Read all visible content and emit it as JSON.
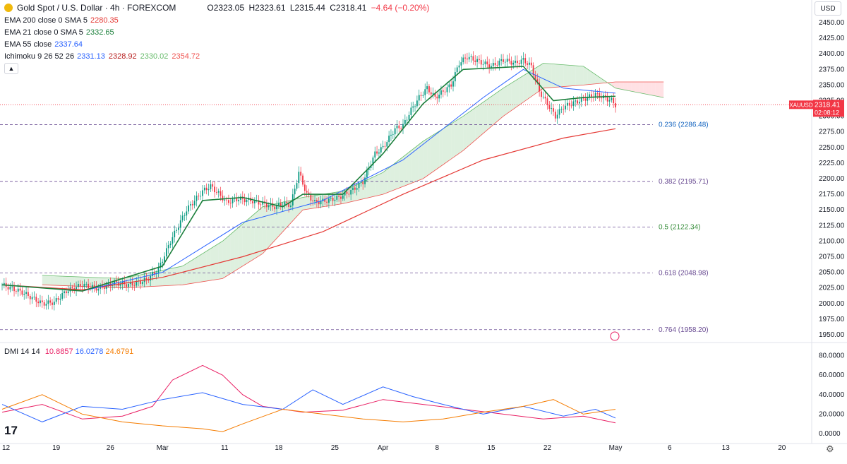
{
  "header": {
    "symbol_title": "Gold Spot / U.S. Dollar · 4h · FOREXCOM",
    "open": "O2323.05",
    "high": "H2323.61",
    "low": "L2315.44",
    "close": "C2318.41",
    "change": "−4.64 (−0.20%)"
  },
  "indicators": [
    {
      "label": "EMA 200 close 0 SMA 5",
      "values": [
        "2280.35"
      ],
      "colors": [
        "#e53935"
      ]
    },
    {
      "label": "EMA 21 close 0 SMA 5",
      "values": [
        "2332.65"
      ],
      "colors": [
        "#1b7f3b"
      ]
    },
    {
      "label": "EMA 55 close",
      "values": [
        "2337.64"
      ],
      "colors": [
        "#2962ff"
      ]
    },
    {
      "label": "Ichimoku 9 26 52 26",
      "values": [
        "2331.13",
        "2328.92",
        "2330.02",
        "2354.72"
      ],
      "colors": [
        "#2962ff",
        "#b71c1c",
        "#66bb6a",
        "#ef5350"
      ]
    }
  ],
  "currency_button": "USD",
  "dmi_legend": {
    "label": "DMI 14 14",
    "values": [
      "10.8857",
      "16.0278",
      "24.6791"
    ],
    "colors": [
      "#e91e63",
      "#2962ff",
      "#f57c00"
    ]
  },
  "price_tag": {
    "symbol": "XAUUSD",
    "price": "2318.41",
    "countdown": "02:08:12",
    "color": "#f23645"
  },
  "colors": {
    "up": "#089981",
    "down": "#f23645",
    "ema200": "#e53935",
    "ema21": "#1b7f3b",
    "ema55": "#2962ff",
    "kumo_up": "#c8e6c9",
    "kumo_down": "#ffcdd2",
    "fib": "#6a4c93"
  },
  "chart_data": [
    {
      "type": "candlestick",
      "title": "Gold Spot / U.S. Dollar · 4h · FOREXCOM",
      "ylim": [
        1940,
        2470
      ],
      "y_ticks": [
        "2450.00",
        "2425.00",
        "2400.00",
        "2375.00",
        "2350.00",
        "2325.00",
        "2300.00",
        "2275.00",
        "2250.00",
        "2225.00",
        "2200.00",
        "2175.00",
        "2150.00",
        "2125.00",
        "2100.00",
        "2075.00",
        "2050.00",
        "2025.00",
        "2000.00",
        "1975.00",
        "1950.00"
      ],
      "x_ticks": [
        "12",
        "19",
        "26",
        "Mar",
        "11",
        "18",
        "25",
        "Apr",
        "8",
        "15",
        "22",
        "May",
        "6",
        "13",
        "20"
      ],
      "fib_levels": [
        {
          "label": "0.236 (2286.48)",
          "value": 2286.48
        },
        {
          "label": "0.382 (2195.71)",
          "value": 2195.71
        },
        {
          "label": "0.5 (2122.34)",
          "value": 2122.34
        },
        {
          "label": "0.618 (2048.98)",
          "value": 2048.98
        },
        {
          "label": "0.764 (1958.20)",
          "value": 1958.2
        }
      ],
      "last_price": 2318.41,
      "price_path": [
        [
          0,
          2030
        ],
        [
          10,
          2018
        ],
        [
          20,
          2000
        ],
        [
          26,
          2002
        ],
        [
          32,
          2020
        ],
        [
          40,
          2030
        ],
        [
          48,
          2024
        ],
        [
          56,
          2033
        ],
        [
          64,
          2030
        ],
        [
          72,
          2038
        ],
        [
          78,
          2055
        ],
        [
          84,
          2100
        ],
        [
          88,
          2125
        ],
        [
          92,
          2150
        ],
        [
          96,
          2165
        ],
        [
          100,
          2180
        ],
        [
          104,
          2188
        ],
        [
          108,
          2176
        ],
        [
          112,
          2162
        ],
        [
          118,
          2168
        ],
        [
          124,
          2165
        ],
        [
          130,
          2160
        ],
        [
          136,
          2155
        ],
        [
          140,
          2160
        ],
        [
          144,
          2158
        ],
        [
          148,
          2210
        ],
        [
          152,
          2175
        ],
        [
          156,
          2162
        ],
        [
          162,
          2165
        ],
        [
          168,
          2170
        ],
        [
          174,
          2180
        ],
        [
          180,
          2195
        ],
        [
          186,
          2240
        ],
        [
          190,
          2250
        ],
        [
          196,
          2280
        ],
        [
          200,
          2285
        ],
        [
          204,
          2310
        ],
        [
          208,
          2330
        ],
        [
          212,
          2345
        ],
        [
          216,
          2330
        ],
        [
          220,
          2340
        ],
        [
          224,
          2350
        ],
        [
          228,
          2385
        ],
        [
          232,
          2395
        ],
        [
          236,
          2390
        ],
        [
          240,
          2385
        ],
        [
          244,
          2380
        ],
        [
          250,
          2390
        ],
        [
          256,
          2385
        ],
        [
          260,
          2390
        ],
        [
          264,
          2380
        ],
        [
          268,
          2340
        ],
        [
          272,
          2320
        ],
        [
          276,
          2300
        ],
        [
          280,
          2315
        ],
        [
          284,
          2320
        ],
        [
          288,
          2325
        ],
        [
          292,
          2330
        ],
        [
          296,
          2335
        ],
        [
          300,
          2330
        ],
        [
          304,
          2325
        ],
        [
          306,
          2318
        ]
      ],
      "ema200": [
        [
          0,
          2030
        ],
        [
          40,
          2022
        ],
        [
          80,
          2042
        ],
        [
          120,
          2075
        ],
        [
          160,
          2115
        ],
        [
          200,
          2175
        ],
        [
          240,
          2230
        ],
        [
          280,
          2265
        ],
        [
          306,
          2280
        ]
      ],
      "ema55": [
        [
          0,
          2030
        ],
        [
          40,
          2020
        ],
        [
          80,
          2050
        ],
        [
          120,
          2130
        ],
        [
          160,
          2165
        ],
        [
          200,
          2230
        ],
        [
          240,
          2330
        ],
        [
          260,
          2375
        ],
        [
          280,
          2345
        ],
        [
          306,
          2337
        ]
      ],
      "ema21": [
        [
          0,
          2030
        ],
        [
          40,
          2020
        ],
        [
          80,
          2060
        ],
        [
          100,
          2165
        ],
        [
          120,
          2170
        ],
        [
          140,
          2155
        ],
        [
          150,
          2175
        ],
        [
          170,
          2175
        ],
        [
          190,
          2240
        ],
        [
          210,
          2320
        ],
        [
          230,
          2375
        ],
        [
          260,
          2380
        ],
        [
          275,
          2325
        ],
        [
          290,
          2330
        ],
        [
          306,
          2332
        ]
      ],
      "kumo_a": [
        [
          20,
          2045
        ],
        [
          60,
          2040
        ],
        [
          90,
          2060
        ],
        [
          110,
          2100
        ],
        [
          130,
          2155
        ],
        [
          150,
          2170
        ],
        [
          170,
          2180
        ],
        [
          190,
          2210
        ],
        [
          210,
          2260
        ],
        [
          230,
          2300
        ],
        [
          250,
          2345
        ],
        [
          270,
          2385
        ],
        [
          290,
          2380
        ],
        [
          306,
          2345
        ],
        [
          330,
          2330
        ]
      ],
      "kumo_b": [
        [
          20,
          2030
        ],
        [
          60,
          2025
        ],
        [
          90,
          2030
        ],
        [
          110,
          2040
        ],
        [
          130,
          2080
        ],
        [
          150,
          2150
        ],
        [
          170,
          2160
        ],
        [
          190,
          2175
        ],
        [
          210,
          2200
        ],
        [
          230,
          2245
        ],
        [
          250,
          2300
        ],
        [
          270,
          2345
        ],
        [
          290,
          2350
        ],
        [
          306,
          2355
        ],
        [
          330,
          2355
        ]
      ]
    },
    {
      "type": "line",
      "title": "DMI 14 14",
      "ylim": [
        0,
        80
      ],
      "y_ticks": [
        "80.0000",
        "60.0000",
        "40.0000",
        "20.0000",
        "0.0000"
      ],
      "series": [
        {
          "values": [
            [
              0,
              22
            ],
            [
              20,
              30
            ],
            [
              40,
              15
            ],
            [
              60,
              18
            ],
            [
              75,
              28
            ],
            [
              85,
              55
            ],
            [
              100,
              70
            ],
            [
              110,
              60
            ],
            [
              120,
              40
            ],
            [
              130,
              28
            ],
            [
              150,
              22
            ],
            [
              170,
              24
            ],
            [
              190,
              35
            ],
            [
              210,
              30
            ],
            [
              230,
              25
            ],
            [
              250,
              20
            ],
            [
              270,
              15
            ],
            [
              290,
              18
            ],
            [
              306,
              11
            ]
          ]
        },
        {
          "values": [
            [
              0,
              30
            ],
            [
              20,
              12
            ],
            [
              40,
              28
            ],
            [
              60,
              25
            ],
            [
              80,
              35
            ],
            [
              100,
              42
            ],
            [
              120,
              30
            ],
            [
              140,
              25
            ],
            [
              155,
              45
            ],
            [
              170,
              30
            ],
            [
              190,
              48
            ],
            [
              205,
              38
            ],
            [
              220,
              30
            ],
            [
              240,
              20
            ],
            [
              260,
              28
            ],
            [
              280,
              18
            ],
            [
              296,
              25
            ],
            [
              306,
              16
            ]
          ]
        },
        {
          "values": [
            [
              0,
              25
            ],
            [
              20,
              40
            ],
            [
              40,
              20
            ],
            [
              60,
              12
            ],
            [
              80,
              8
            ],
            [
              100,
              5
            ],
            [
              110,
              2
            ],
            [
              120,
              10
            ],
            [
              140,
              25
            ],
            [
              160,
              20
            ],
            [
              180,
              15
            ],
            [
              200,
              12
            ],
            [
              220,
              15
            ],
            [
              240,
              22
            ],
            [
              260,
              28
            ],
            [
              275,
              35
            ],
            [
              290,
              20
            ],
            [
              306,
              25
            ]
          ]
        }
      ]
    }
  ]
}
